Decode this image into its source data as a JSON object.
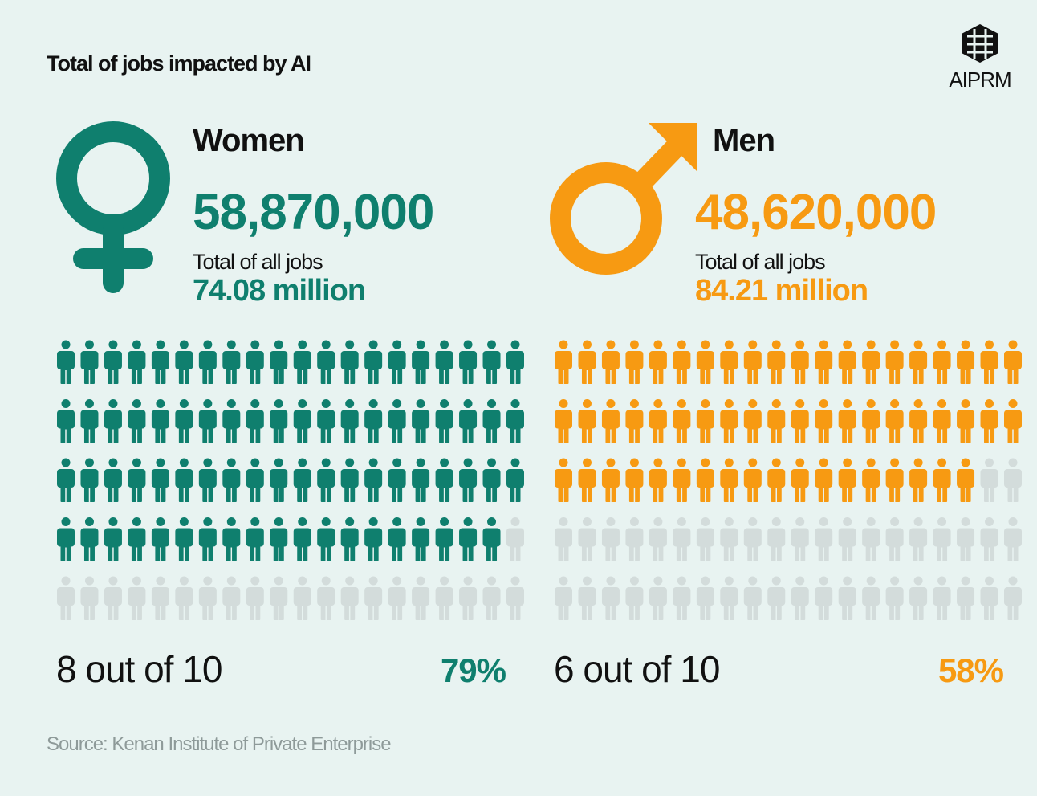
{
  "header": {
    "title": "Total of jobs impacted by AI",
    "logo": "AIPRM"
  },
  "panels": [
    {
      "label": "Women",
      "impacted": "58,870,000",
      "total_label": "Total of all jobs",
      "total": "74.08 million",
      "ratio": "8 out of 10",
      "percent": 79,
      "percent_label": "79%",
      "color": "#0f7f6e"
    },
    {
      "label": "Men",
      "impacted": "48,620,000",
      "total_label": "Total of all jobs",
      "total": "84.21 million",
      "ratio": "6 out of 10",
      "percent": 58,
      "percent_label": "58%",
      "color": "#f79a12"
    }
  ],
  "source": "Source: Kenan Institute of Private Enterprise"
}
